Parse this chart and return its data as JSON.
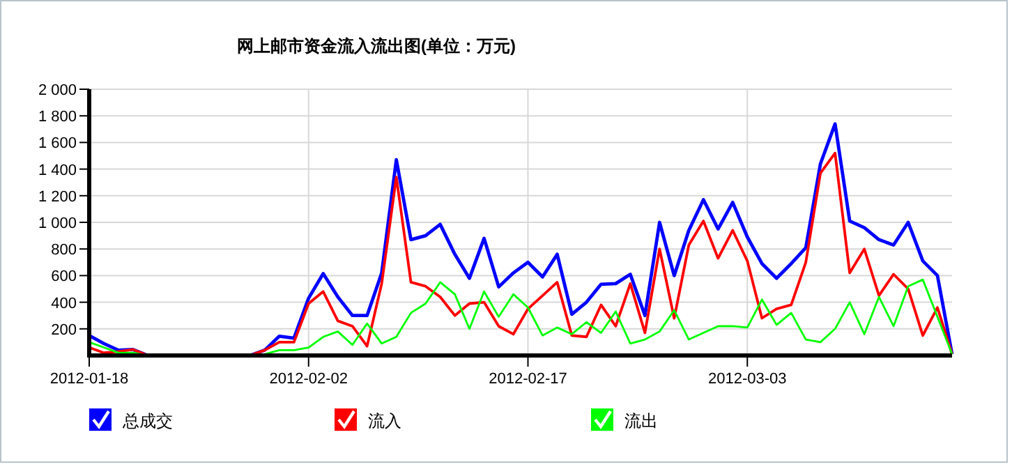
{
  "chart_data": {
    "type": "line",
    "title": "网上邮市资金流入流出图(单位：万元)",
    "x": [
      "2012-01-18",
      "2012-01-19",
      "2012-01-20",
      "2012-01-21",
      "2012-01-22",
      "2012-01-23",
      "2012-01-24",
      "2012-01-25",
      "2012-01-26",
      "2012-01-27",
      "2012-01-28",
      "2012-01-29",
      "2012-01-30",
      "2012-01-31",
      "2012-02-01",
      "2012-02-02",
      "2012-02-03",
      "2012-02-04",
      "2012-02-05",
      "2012-02-06",
      "2012-02-07",
      "2012-02-08",
      "2012-02-09",
      "2012-02-10",
      "2012-02-11",
      "2012-02-12",
      "2012-02-13",
      "2012-02-14",
      "2012-02-15",
      "2012-02-16",
      "2012-02-17",
      "2012-02-18",
      "2012-02-19",
      "2012-02-20",
      "2012-02-21",
      "2012-02-22",
      "2012-02-23",
      "2012-02-24",
      "2012-02-25",
      "2012-02-26",
      "2012-02-27",
      "2012-02-28",
      "2012-02-29",
      "2012-03-01",
      "2012-03-02",
      "2012-03-03",
      "2012-03-04",
      "2012-03-05",
      "2012-03-06",
      "2012-03-07",
      "2012-03-08",
      "2012-03-09",
      "2012-03-10",
      "2012-03-11",
      "2012-03-12",
      "2012-03-13",
      "2012-03-14",
      "2012-03-15",
      "2012-03-16",
      "2012-03-17"
    ],
    "series": [
      {
        "name": "总成交",
        "color": "#0000ff",
        "values": [
          150,
          90,
          40,
          45,
          0,
          0,
          0,
          0,
          0,
          0,
          0,
          0,
          40,
          145,
          130,
          430,
          615,
          440,
          300,
          300,
          620,
          1470,
          870,
          900,
          985,
          760,
          580,
          880,
          515,
          620,
          700,
          590,
          760,
          310,
          400,
          535,
          540,
          610,
          300,
          1000,
          600,
          940,
          1170,
          950,
          1150,
          890,
          690,
          580,
          690,
          810,
          1440,
          1740,
          1010,
          960,
          870,
          830,
          1000,
          710,
          600,
          10
        ]
      },
      {
        "name": "流入",
        "color": "#ff0000",
        "values": [
          60,
          20,
          30,
          45,
          0,
          0,
          0,
          0,
          0,
          0,
          0,
          0,
          40,
          100,
          100,
          390,
          480,
          260,
          220,
          70,
          540,
          1340,
          550,
          520,
          440,
          300,
          390,
          400,
          220,
          160,
          350,
          450,
          550,
          150,
          140,
          380,
          220,
          540,
          170,
          800,
          280,
          830,
          1010,
          730,
          940,
          710,
          280,
          350,
          380,
          700,
          1370,
          1520,
          620,
          800,
          450,
          610,
          500,
          150,
          360,
          10
        ]
      },
      {
        "name": "流出",
        "color": "#00ff00",
        "values": [
          100,
          60,
          20,
          20,
          0,
          0,
          0,
          0,
          0,
          0,
          0,
          0,
          10,
          40,
          40,
          60,
          140,
          180,
          80,
          240,
          90,
          140,
          320,
          390,
          550,
          460,
          200,
          480,
          290,
          460,
          360,
          150,
          210,
          160,
          250,
          170,
          330,
          90,
          120,
          180,
          340,
          120,
          170,
          220,
          220,
          210,
          420,
          230,
          320,
          120,
          100,
          200,
          400,
          160,
          440,
          220,
          520,
          570,
          290,
          10
        ]
      }
    ],
    "xlim": [
      "2012-01-18",
      "2012-03-17"
    ],
    "xticks": [
      "2012-01-18",
      "2012-02-02",
      "2012-02-17",
      "2012-03-03"
    ],
    "ylim": [
      0,
      2000
    ],
    "yticks": [
      {
        "value": 0,
        "label": null
      },
      200,
      400,
      600,
      800,
      {
        "value": 1000,
        "label": "1 000"
      },
      {
        "value": 1200,
        "label": "1 200"
      },
      {
        "value": 1400,
        "label": "1 400"
      },
      {
        "value": 1600,
        "label": "1 600"
      },
      {
        "value": 1800,
        "label": "1 800"
      },
      {
        "value": 2000,
        "label": "2 000"
      }
    ],
    "grid": true,
    "legend": "bottom",
    "marker": "none",
    "line_style": "solid"
  }
}
